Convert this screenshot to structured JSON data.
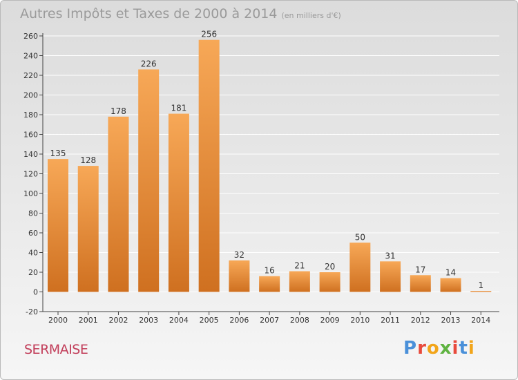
{
  "title": "Autres Impôts et Taxes de 2000 à 2014",
  "unit": "(en milliers d'€)",
  "town": "SERMAISE",
  "logo": {
    "text": "Proxiti",
    "colors": [
      "#4a90d9",
      "#e84a3c",
      "#f2a51a",
      "#5fb341",
      "#e84a3c",
      "#4a90d9",
      "#f2a51a"
    ]
  },
  "colors": {
    "bar_top": "#f7a857",
    "bar_bottom": "#cf7020",
    "axis": "#444444",
    "grid": "#ffffff"
  },
  "chart_data": {
    "type": "bar",
    "categories": [
      "2000",
      "2001",
      "2002",
      "2003",
      "2004",
      "2005",
      "2006",
      "2007",
      "2008",
      "2009",
      "2010",
      "2011",
      "2012",
      "2013",
      "2014"
    ],
    "values": [
      135,
      128,
      178,
      226,
      181,
      256,
      32,
      16,
      21,
      20,
      50,
      31,
      17,
      14,
      1
    ],
    "ylim": [
      -20,
      260
    ],
    "yticks": [
      -20,
      0,
      20,
      40,
      60,
      80,
      100,
      120,
      140,
      160,
      180,
      200,
      220,
      240,
      260
    ],
    "grid": true
  }
}
